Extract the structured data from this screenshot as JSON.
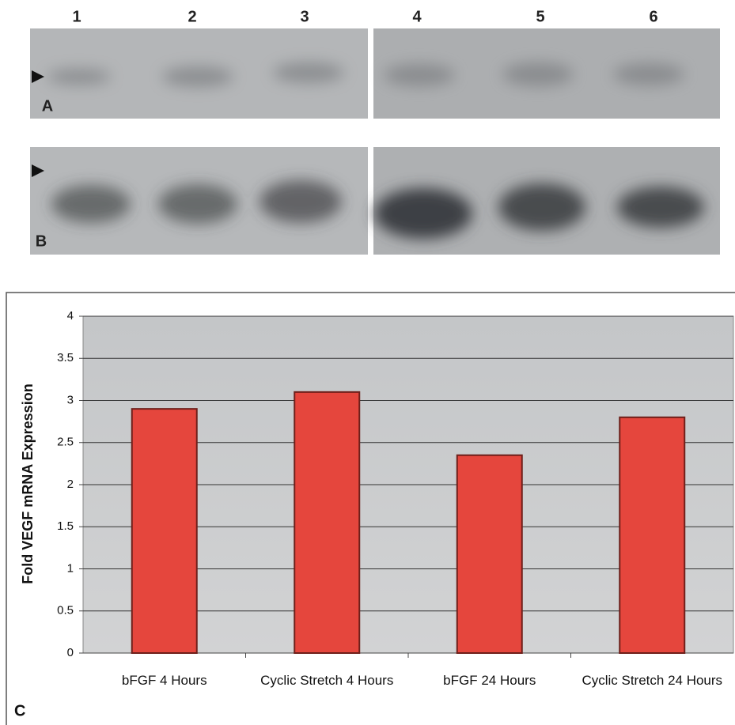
{
  "blot": {
    "lanes": [
      "1",
      "2",
      "3",
      "4",
      "5",
      "6"
    ],
    "panels": [
      "A",
      "B"
    ]
  },
  "panel_label": "C",
  "chart_data": {
    "type": "bar",
    "y_label": "Fold VEGF mRNA Expression",
    "categories": [
      "bFGF 4 Hours",
      "Cyclic Stretch 4 Hours",
      "bFGF 24 Hours",
      "Cyclic Stretch 24 Hours"
    ],
    "values": [
      2.9,
      3.1,
      2.35,
      2.8
    ],
    "color": "#e5463d",
    "ylim": [
      0,
      4
    ],
    "yticks": [
      0,
      0.5,
      1,
      1.5,
      2,
      2.5,
      3,
      3.5,
      4
    ],
    "grid": true
  }
}
